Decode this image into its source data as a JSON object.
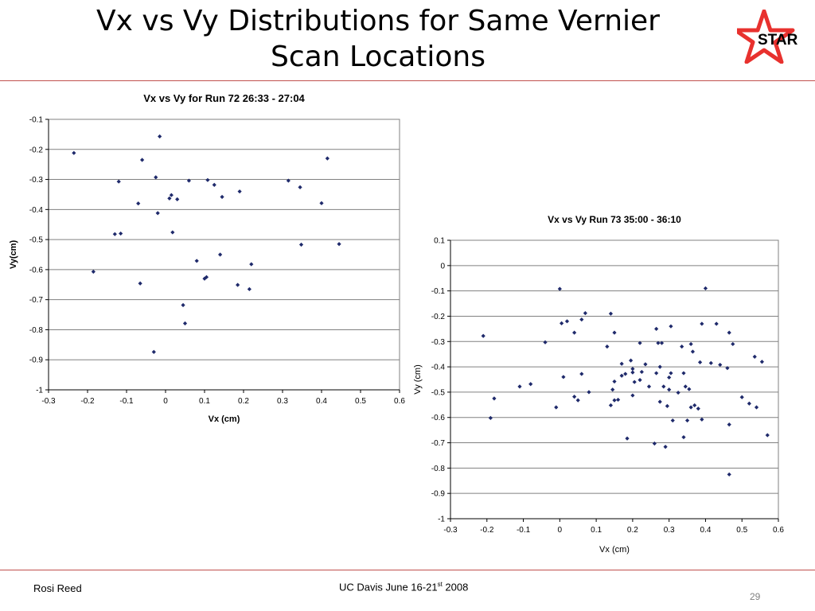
{
  "slide": {
    "title_line1": "Vx vs Vy Distributions for Same Vernier",
    "title_line2": "Scan Locations",
    "logo_text": "STAR",
    "footer_author": "Rosi Reed",
    "footer_event_pre": "UC Davis June 16-21",
    "footer_event_sup": "st",
    "footer_event_post": " 2008",
    "slide_number": "29",
    "colors": {
      "rule": "#c0504d",
      "logo_red": "#e8312e",
      "logo_blue": "#2f3fa3",
      "marker": "#1f2a6b",
      "grid": "#808080"
    }
  },
  "chart_data": [
    {
      "type": "scatter",
      "title": "Vx vs Vy for Run 72 26:33 - 27:04",
      "xlabel": "Vx (cm)",
      "ylabel": "Vy(cm)",
      "xlim": [
        -0.3,
        0.6
      ],
      "ylim": [
        -1,
        -0.1
      ],
      "xticks": [
        "-0.3",
        "-0.2",
        "-0.1",
        "0",
        "0.1",
        "0.2",
        "0.3",
        "0.4",
        "0.5",
        "0.6"
      ],
      "yticks": [
        "-0.1",
        "-0.2",
        "-0.3",
        "-0.4",
        "-0.5",
        "-0.6",
        "-0.7",
        "-0.8",
        "-0.9",
        "-1"
      ],
      "grid": "horizontal",
      "points": [
        [
          -0.235,
          -0.212
        ],
        [
          -0.185,
          -0.607
        ],
        [
          -0.13,
          -0.482
        ],
        [
          -0.12,
          -0.307
        ],
        [
          -0.115,
          -0.48
        ],
        [
          -0.07,
          -0.38
        ],
        [
          -0.065,
          -0.646
        ],
        [
          -0.06,
          -0.235
        ],
        [
          -0.03,
          -0.874
        ],
        [
          -0.025,
          -0.293
        ],
        [
          -0.02,
          -0.412
        ],
        [
          -0.015,
          -0.157
        ],
        [
          0.01,
          -0.363
        ],
        [
          0.015,
          -0.352
        ],
        [
          0.018,
          -0.476
        ],
        [
          0.03,
          -0.366
        ],
        [
          0.045,
          -0.718
        ],
        [
          0.05,
          -0.779
        ],
        [
          0.06,
          -0.304
        ],
        [
          0.08,
          -0.571
        ],
        [
          0.1,
          -0.63
        ],
        [
          0.105,
          -0.625
        ],
        [
          0.108,
          -0.302
        ],
        [
          0.125,
          -0.318
        ],
        [
          0.14,
          -0.55
        ],
        [
          0.145,
          -0.358
        ],
        [
          0.185,
          -0.651
        ],
        [
          0.19,
          -0.34
        ],
        [
          0.215,
          -0.665
        ],
        [
          0.22,
          -0.582
        ],
        [
          0.315,
          -0.304
        ],
        [
          0.345,
          -0.326
        ],
        [
          0.348,
          -0.517
        ],
        [
          0.4,
          -0.379
        ],
        [
          0.415,
          -0.23
        ],
        [
          0.445,
          -0.515
        ]
      ]
    },
    {
      "type": "scatter",
      "title": "Vx vs Vy Run 73 35:00 - 36:10",
      "xlabel": "Vx (cm)",
      "ylabel": "Vy (cm)",
      "xlim": [
        -0.3,
        0.6
      ],
      "ylim": [
        -1,
        0.1
      ],
      "xticks": [
        "-0.3",
        "-0.2",
        "-0.1",
        "0",
        "0.1",
        "0.2",
        "0.3",
        "0.4",
        "0.5",
        "0.6"
      ],
      "yticks": [
        "0.1",
        "0",
        "-0.1",
        "-0.2",
        "-0.3",
        "-0.4",
        "-0.5",
        "-0.6",
        "-0.7",
        "-0.8",
        "-0.9",
        "-1"
      ],
      "grid": "horizontal",
      "points": [
        [
          -0.21,
          -0.278
        ],
        [
          -0.19,
          -0.602
        ],
        [
          -0.18,
          -0.525
        ],
        [
          -0.11,
          -0.478
        ],
        [
          -0.08,
          -0.468
        ],
        [
          -0.04,
          -0.303
        ],
        [
          -0.01,
          -0.56
        ],
        [
          0,
          -0.092
        ],
        [
          0.005,
          -0.228
        ],
        [
          0.01,
          -0.44
        ],
        [
          0.02,
          -0.22
        ],
        [
          0.04,
          -0.518
        ],
        [
          0.04,
          -0.265
        ],
        [
          0.05,
          -0.532
        ],
        [
          0.06,
          -0.428
        ],
        [
          0.06,
          -0.213
        ],
        [
          0.07,
          -0.188
        ],
        [
          0.08,
          -0.5
        ],
        [
          0.13,
          -0.32
        ],
        [
          0.14,
          -0.19
        ],
        [
          0.14,
          -0.552
        ],
        [
          0.145,
          -0.49
        ],
        [
          0.15,
          -0.265
        ],
        [
          0.15,
          -0.532
        ],
        [
          0.15,
          -0.458
        ],
        [
          0.16,
          -0.53
        ],
        [
          0.17,
          -0.435
        ],
        [
          0.17,
          -0.388
        ],
        [
          0.18,
          -0.428
        ],
        [
          0.185,
          -0.683
        ],
        [
          0.195,
          -0.375
        ],
        [
          0.2,
          -0.422
        ],
        [
          0.2,
          -0.408
        ],
        [
          0.2,
          -0.513
        ],
        [
          0.205,
          -0.46
        ],
        [
          0.22,
          -0.306
        ],
        [
          0.22,
          -0.452
        ],
        [
          0.225,
          -0.42
        ],
        [
          0.235,
          -0.39
        ],
        [
          0.245,
          -0.478
        ],
        [
          0.26,
          -0.703
        ],
        [
          0.265,
          -0.425
        ],
        [
          0.265,
          -0.25
        ],
        [
          0.27,
          -0.306
        ],
        [
          0.275,
          -0.4
        ],
        [
          0.275,
          -0.538
        ],
        [
          0.28,
          -0.306
        ],
        [
          0.285,
          -0.478
        ],
        [
          0.29,
          -0.716
        ],
        [
          0.295,
          -0.555
        ],
        [
          0.3,
          -0.442
        ],
        [
          0.3,
          -0.49
        ],
        [
          0.305,
          -0.24
        ],
        [
          0.305,
          -0.425
        ],
        [
          0.31,
          -0.612
        ],
        [
          0.325,
          -0.502
        ],
        [
          0.335,
          -0.32
        ],
        [
          0.34,
          -0.425
        ],
        [
          0.34,
          -0.678
        ],
        [
          0.345,
          -0.478
        ],
        [
          0.35,
          -0.612
        ],
        [
          0.355,
          -0.488
        ],
        [
          0.36,
          -0.56
        ],
        [
          0.36,
          -0.31
        ],
        [
          0.365,
          -0.34
        ],
        [
          0.37,
          -0.552
        ],
        [
          0.38,
          -0.565
        ],
        [
          0.385,
          -0.382
        ],
        [
          0.39,
          -0.608
        ],
        [
          0.39,
          -0.23
        ],
        [
          0.4,
          -0.09
        ],
        [
          0.415,
          -0.385
        ],
        [
          0.43,
          -0.23
        ],
        [
          0.44,
          -0.392
        ],
        [
          0.46,
          -0.405
        ],
        [
          0.465,
          -0.265
        ],
        [
          0.465,
          -0.825
        ],
        [
          0.465,
          -0.628
        ],
        [
          0.475,
          -0.31
        ],
        [
          0.5,
          -0.52
        ],
        [
          0.52,
          -0.545
        ],
        [
          0.535,
          -0.36
        ],
        [
          0.54,
          -0.56
        ],
        [
          0.555,
          -0.38
        ],
        [
          0.57,
          -0.67
        ]
      ]
    }
  ]
}
